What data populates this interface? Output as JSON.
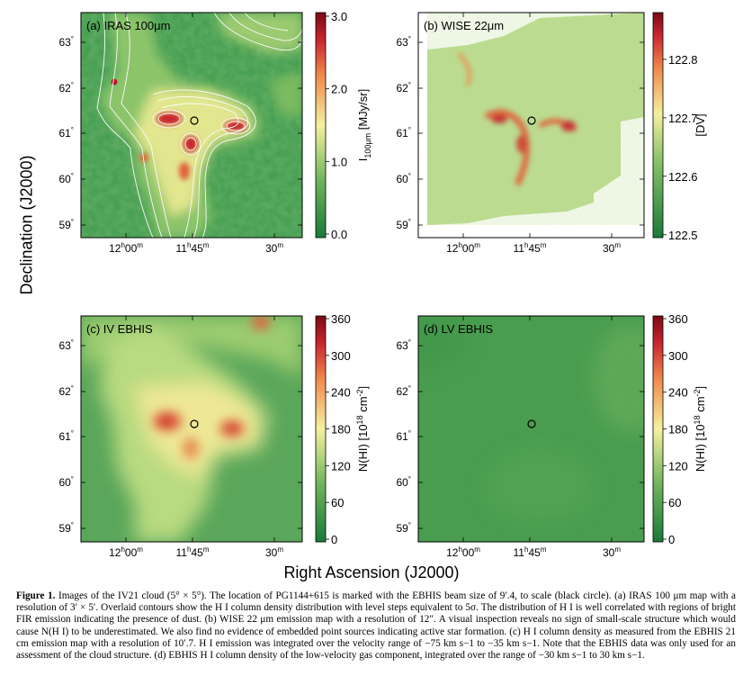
{
  "global_ylabel": "Declination (J2000)",
  "global_xlabel": "Right Ascension (J2000)",
  "colors": {
    "green_dark": "#1a7a3a",
    "green_mid": "#7dba5c",
    "yellow": "#f5f0a0",
    "red": "#b2182b",
    "dark_red": "#7a0a14"
  },
  "panels": [
    {
      "id": "a",
      "label": "(a) IRAS 100μm",
      "ra_ticks": [
        "12h00m",
        "11h45m",
        "30m"
      ],
      "dec_ticks": [
        "63°",
        "62°",
        "61°",
        "60°",
        "59°"
      ],
      "colorbar": {
        "label": "I100μm [MJy/sr]",
        "ticks": [
          "0.0",
          "1.0",
          "2.0",
          "3.0"
        ]
      }
    },
    {
      "id": "b",
      "label": "(b) WISE 22μm",
      "ra_ticks": [
        "12h00m",
        "11h45m",
        "30m"
      ],
      "dec_ticks": [
        "63°",
        "62°",
        "61°",
        "60°",
        "59°"
      ],
      "colorbar": {
        "label": "[DV]",
        "ticks": [
          "122.5",
          "122.6",
          "122.7",
          "122.8"
        ]
      }
    },
    {
      "id": "c",
      "label": "(c) IV EBHIS",
      "ra_ticks": [
        "12h00m",
        "11h45m",
        "30m"
      ],
      "dec_ticks": [
        "63°",
        "62°",
        "61°",
        "60°",
        "59°"
      ],
      "colorbar": {
        "label": "N(HI) [10^18 cm^-2]",
        "ticks": [
          "0",
          "60",
          "120",
          "180",
          "240",
          "300",
          "360"
        ]
      }
    },
    {
      "id": "d",
      "label": "(d) LV EBHIS",
      "ra_ticks": [
        "12h00m",
        "11h45m",
        "30m"
      ],
      "dec_ticks": [
        "63°",
        "62°",
        "61°",
        "60°",
        "59°"
      ],
      "colorbar": {
        "label": "N(HI) [10^18 cm^-2]",
        "ticks": [
          "0",
          "60",
          "120",
          "180",
          "240",
          "300",
          "360"
        ]
      }
    }
  ],
  "caption": {
    "figure_label": "Figure 1.",
    "text": "Images of the IV21 cloud (5° × 5°). The location of PG1144+615 is marked with the EBHIS beam size of 9′.4, to scale (black circle). (a) IRAS 100 μm map with a resolution of 3′ × 5′. Overlaid contours show the H I column density distribution with level steps equivalent to 5σ. The distribution of H I is well correlated with regions of bright FIR emission indicating the presence of dust. (b) WISE 22 μm emission map with a resolution of 12″. A visual inspection reveals no sign of small-scale structure which would cause N(H I) to be underestimated. We also find no evidence of embedded point sources indicating active star formation. (c) H I column density as measured from the EBHIS 21 cm emission map with a resolution of 10′.7. H I emission was integrated over the velocity range of −75 km s−1 to −35 km s−1. Note that the EBHIS data was only used for an assessment of the cloud structure. (d) EBHIS H I column density of the low-velocity gas component, integrated over the range of −30 km s−1 to 30 km s−1."
  }
}
